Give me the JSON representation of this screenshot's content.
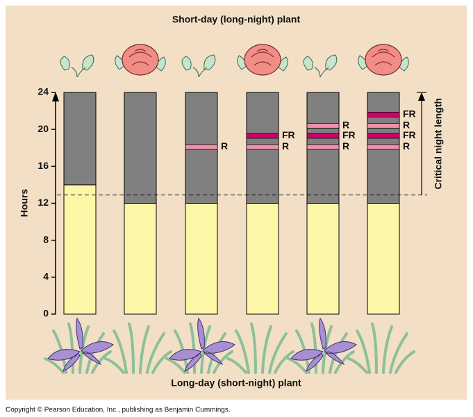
{
  "chart_data": {
    "type": "bar",
    "title": "Short-day (long-night) plant",
    "subtitle": "Long-day (short-night) plant",
    "y_label": "Hours",
    "ylim": [
      0,
      24
    ],
    "yticks": [
      0,
      4,
      8,
      12,
      16,
      20,
      24
    ],
    "stacked": true,
    "series": [
      {
        "name": "light",
        "color": "#fbf7a6",
        "values": [
          14,
          12,
          12,
          12,
          12,
          12
        ]
      },
      {
        "name": "dark",
        "color": "#808080",
        "values": [
          10,
          12,
          12,
          12,
          12,
          12
        ]
      }
    ],
    "flashes": [
      [],
      [],
      [
        {
          "label": "R",
          "value": 18.1
        }
      ],
      [
        {
          "label": "R",
          "value": 18.1
        },
        {
          "label": "FR",
          "value": 19.3
        }
      ],
      [
        {
          "label": "R",
          "value": 18.1
        },
        {
          "label": "FR",
          "value": 19.3
        },
        {
          "label": "R",
          "value": 20.4
        }
      ],
      [
        {
          "label": "R",
          "value": 18.1
        },
        {
          "label": "FR",
          "value": 19.3
        },
        {
          "label": "R",
          "value": 20.4
        },
        {
          "label": "FR",
          "value": 21.6
        }
      ]
    ],
    "flash_colors": {
      "R": "#f08fab",
      "FR": "#d1006b"
    },
    "critical": {
      "label": "Critical night length",
      "value": 12.9
    },
    "footer": "Copyright © Pearson Education, Inc., publishing as Benjamin Cummings."
  }
}
